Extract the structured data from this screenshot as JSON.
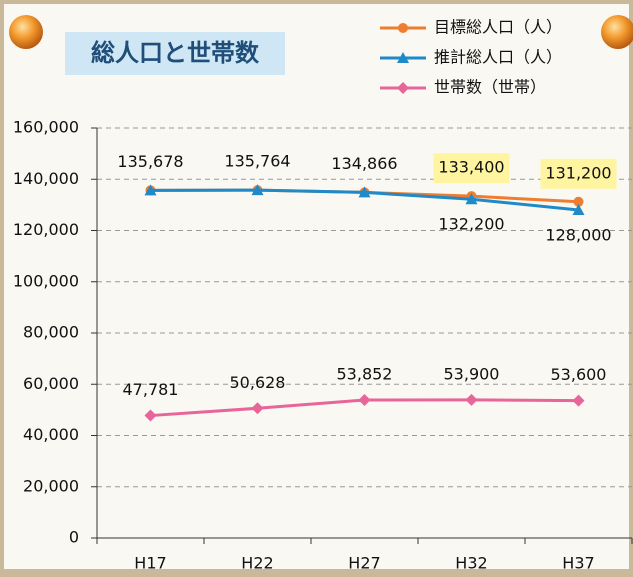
{
  "chart_data": {
    "type": "line",
    "title": "総人口と世帯数",
    "categories": [
      "H17",
      "H22",
      "H27",
      "H32",
      "H37"
    ],
    "series": [
      {
        "name": "目標総人口（人）",
        "color": "#ed7d31",
        "marker": "circle",
        "values": [
          135678,
          135764,
          134866,
          133400,
          131200
        ],
        "value_labels": [
          "135,678",
          "135,764",
          "134,866",
          "133,400",
          "131,200"
        ]
      },
      {
        "name": "推計総人口（人）",
        "color": "#1f8ac9",
        "marker": "triangle",
        "values": [
          135678,
          135764,
          134866,
          132200,
          128000
        ],
        "value_labels": [
          null,
          null,
          null,
          "132,200",
          "128,000"
        ]
      },
      {
        "name": "世帯数（世帯）",
        "color": "#e8659a",
        "marker": "diamond",
        "values": [
          47781,
          50628,
          53852,
          53900,
          53600
        ],
        "value_labels": [
          "47,781",
          "50,628",
          "53,852",
          "53,900",
          "53,600"
        ]
      }
    ],
    "ylim": [
      0,
      160000
    ],
    "yticks": [
      0,
      {
        "value": 20000,
        "label": "20,000"
      },
      {
        "value": 40000,
        "label": "40,000"
      },
      {
        "value": 60000,
        "label": "60,000"
      },
      {
        "value": 80000,
        "label": "80,000"
      },
      {
        "value": 100000,
        "label": "100,000"
      },
      {
        "value": 120000,
        "label": "120,000"
      },
      {
        "value": 140000,
        "label": "140,000"
      },
      {
        "value": 160000,
        "label": "160,000"
      }
    ],
    "grid": true,
    "legend": "top-right"
  }
}
